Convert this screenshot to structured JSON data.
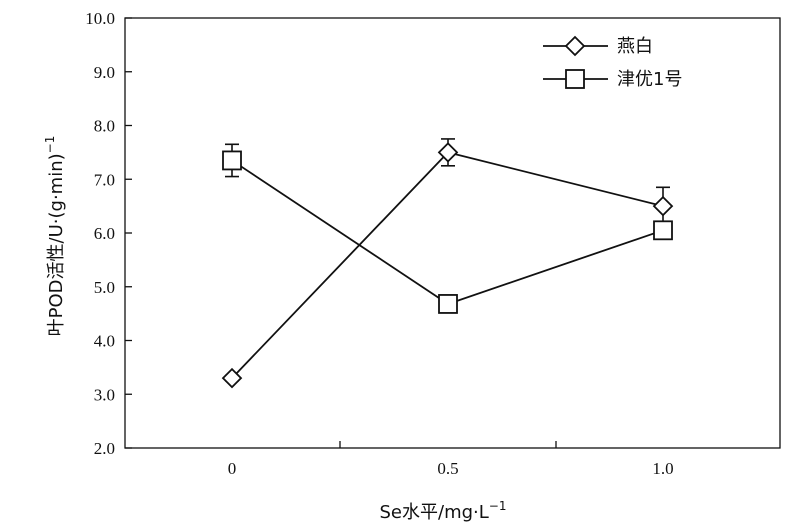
{
  "chart_data": {
    "type": "line",
    "title": "",
    "xlabel": "Se水平/mg·L",
    "xlabel_sup": "−1",
    "ylabel": "叶POD活性/U·(g·min)",
    "ylabel_sup": "−1",
    "categories": [
      "0",
      "0.5",
      "1.0"
    ],
    "ylim": [
      2.0,
      10.0
    ],
    "yticks": [
      "2.0",
      "3.0",
      "4.0",
      "5.0",
      "6.0",
      "7.0",
      "8.0",
      "9.0",
      "10.0"
    ],
    "grid": false,
    "legend_position": "top-right",
    "series": [
      {
        "name": "燕白",
        "marker": "diamond",
        "values": [
          3.3,
          7.5,
          6.5
        ],
        "errors": [
          0.05,
          0.25,
          0.35
        ]
      },
      {
        "name": "津优1号",
        "marker": "square",
        "values": [
          7.35,
          4.68,
          6.05
        ],
        "errors": [
          0.3,
          0.05,
          0.1
        ]
      }
    ]
  }
}
